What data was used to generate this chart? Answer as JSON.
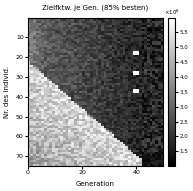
{
  "title": "Zielfktw. je Gen. (85% besten)",
  "xlabel": "Generation",
  "ylabel": "Nr. des Individ.",
  "xlim": [
    0,
    50
  ],
  "ylim": [
    0,
    75
  ],
  "n_gen": 50,
  "n_ind": 75,
  "vmin": 1.0,
  "vmax": 6.0,
  "cmap": "gray",
  "seed": 7,
  "xticks": [
    0,
    20,
    40
  ],
  "yticks": [
    10,
    20,
    30,
    40,
    50,
    60,
    70
  ],
  "colorbar_ticks": [
    1.5,
    2.0,
    2.5,
    3.0,
    3.5,
    4.0,
    4.5,
    5.0,
    5.5
  ]
}
